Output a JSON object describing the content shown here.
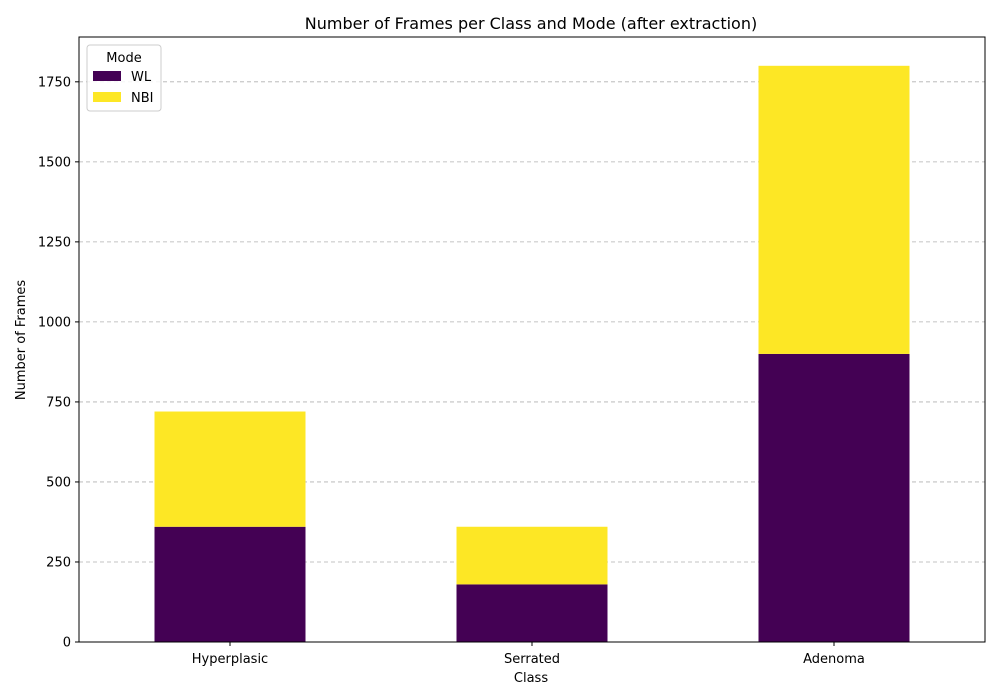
{
  "chart_data": {
    "type": "bar",
    "stacked": true,
    "title": "Number of Frames per Class and Mode (after extraction)",
    "xlabel": "Class",
    "ylabel": "Number of Frames",
    "categories": [
      "Hyperplasic",
      "Serrated",
      "Adenoma"
    ],
    "series": [
      {
        "name": "WL",
        "values": [
          360,
          180,
          900
        ],
        "color": "#440154"
      },
      {
        "name": "NBI",
        "values": [
          360,
          180,
          900
        ],
        "color": "#fde725"
      }
    ],
    "ylim": [
      0,
      1890
    ],
    "yticks": [
      0,
      250,
      500,
      750,
      1000,
      1250,
      1500,
      1750
    ],
    "grid": "y-dashed",
    "legend": {
      "title": "Mode",
      "placement": "top-left"
    }
  }
}
